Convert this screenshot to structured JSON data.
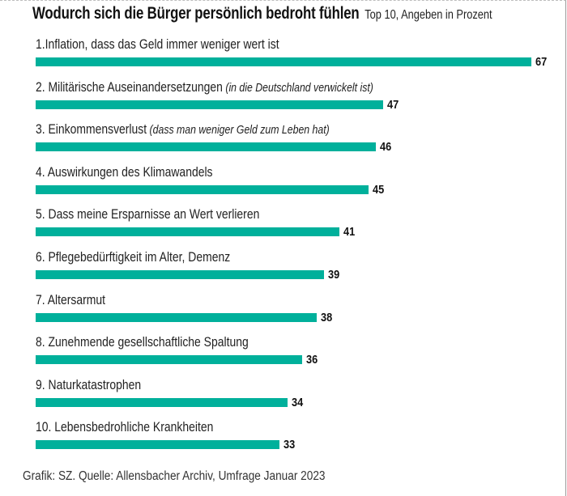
{
  "header": {
    "title": "Wodurch sich die Bürger persönlich bedroht fühlen",
    "subtitle": "Top 10, Angeben in Prozent"
  },
  "footer": "Grafik: SZ. Quelle: Allensbacher Archiv, Umfrage Januar 2023",
  "colors": {
    "bar": "#00b09b",
    "text": "#1a1a1a"
  },
  "chart_data": {
    "type": "bar",
    "orientation": "horizontal",
    "title": "Wodurch sich die Bürger persönlich bedroht fühlen",
    "subtitle": "Top 10, Angeben in Prozent",
    "xlabel": "",
    "ylabel": "",
    "unit": "%",
    "xlim": [
      0,
      67
    ],
    "grid": false,
    "legend": "none",
    "categories": [
      {
        "label": "1.Inflation, dass das Geld immer weniger wert ist",
        "note": ""
      },
      {
        "label": "2. Militärische Auseinandersetzungen",
        "note": "(in die Deutschland verwickelt ist)"
      },
      {
        "label": "3. Einkommensverlust",
        "note": "(dass man weniger Geld zum Leben hat)"
      },
      {
        "label": "4. Auswirkungen des Klimawandels",
        "note": ""
      },
      {
        "label": "5. Dass meine Ersparnisse an Wert verlieren",
        "note": ""
      },
      {
        "label": "6. Pflegebedürftigkeit im Alter, Demenz",
        "note": ""
      },
      {
        "label": "7. Altersarmut",
        "note": ""
      },
      {
        "label": "8. Zunehmende gesellschaftliche Spaltung",
        "note": ""
      },
      {
        "label": "9. Naturkatastrophen",
        "note": ""
      },
      {
        "label": "10. Lebensbedrohliche Krankheiten",
        "note": ""
      }
    ],
    "values": [
      67,
      47,
      46,
      45,
      41,
      39,
      38,
      36,
      34,
      33
    ],
    "source": "Grafik: SZ. Quelle: Allensbacher Archiv, Umfrage Januar 2023"
  }
}
